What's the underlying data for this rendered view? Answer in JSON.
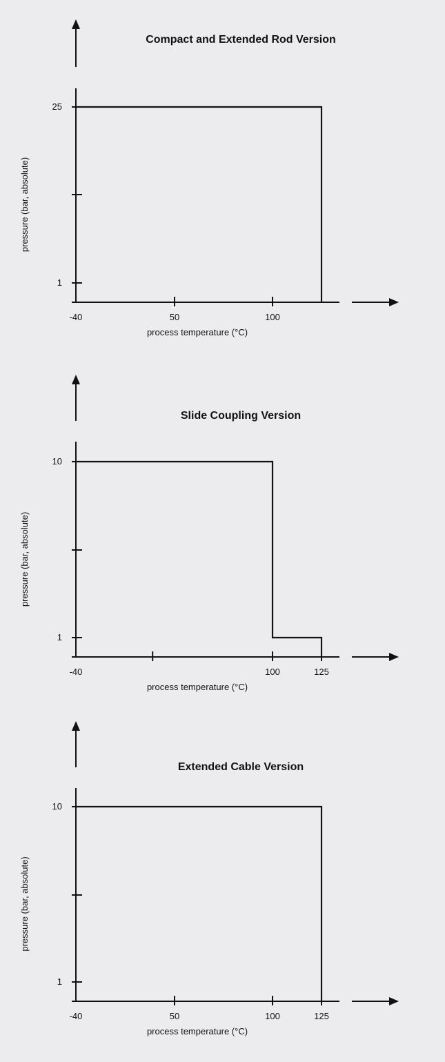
{
  "chart_data": [
    {
      "type": "line",
      "title": "Compact and Extended Rod Version",
      "xlabel": "process temperature (°C)",
      "ylabel": "pressure (bar, absolute)",
      "x_ticks": [
        -40,
        50,
        100
      ],
      "x_tick_labels": [
        "-40",
        "50",
        "100"
      ],
      "y_ticks": [
        1,
        13,
        25
      ],
      "y_tick_labels": [
        "1",
        "",
        "25"
      ],
      "xlim": [
        -40,
        125
      ],
      "ylim": [
        0,
        25
      ],
      "series": [
        {
          "x": [
            -40,
            125,
            125
          ],
          "y": [
            25,
            25,
            0
          ]
        }
      ]
    },
    {
      "type": "line",
      "title": "Slide Coupling Version",
      "xlabel": "process temperature (°C)",
      "ylabel": "pressure (bar, absolute)",
      "x_ticks": [
        -40,
        30,
        100,
        125
      ],
      "x_tick_labels": [
        "-40",
        "",
        "100",
        "125"
      ],
      "y_ticks": [
        1,
        5.5,
        10
      ],
      "y_tick_labels": [
        "1",
        "",
        "10"
      ],
      "xlim": [
        -40,
        125
      ],
      "ylim": [
        0,
        10
      ],
      "series": [
        {
          "x": [
            -40,
            100,
            100,
            125,
            125
          ],
          "y": [
            10,
            10,
            1,
            1,
            0
          ]
        }
      ]
    },
    {
      "type": "line",
      "title": "Extended Cable Version",
      "xlabel": "process temperature (°C)",
      "ylabel": "pressure (bar, absolute)",
      "x_ticks": [
        -40,
        50,
        100,
        125
      ],
      "x_tick_labels": [
        "-40",
        "50",
        "100",
        "125"
      ],
      "y_ticks": [
        1,
        5.5,
        10
      ],
      "y_tick_labels": [
        "1",
        "",
        "10"
      ],
      "xlim": [
        -40,
        125
      ],
      "ylim": [
        0,
        10
      ],
      "series": [
        {
          "x": [
            -40,
            125,
            125
          ],
          "y": [
            10,
            10,
            0
          ]
        }
      ]
    }
  ]
}
